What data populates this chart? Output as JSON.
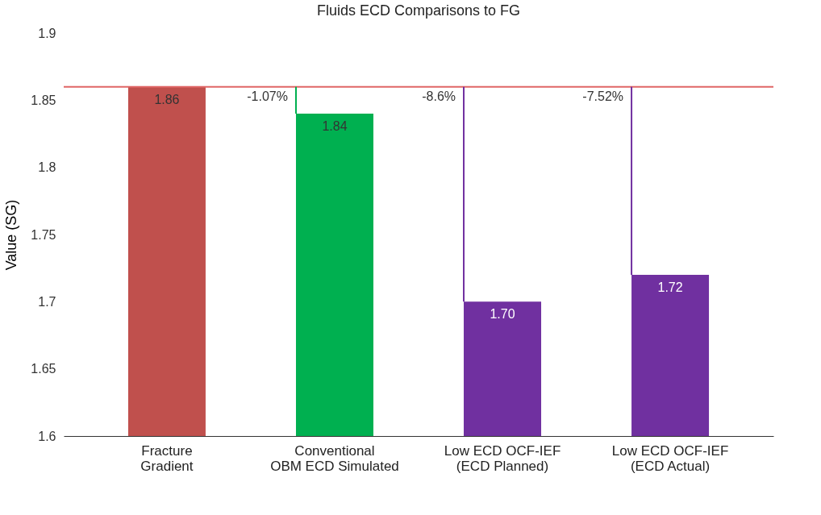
{
  "chart_data": {
    "type": "bar",
    "title": "Fluids ECD Comparisons to FG",
    "ylabel": "Value (SG)",
    "categories": [
      "Fracture\nGradient",
      "Conventional\nOBM ECD Simulated",
      "Low ECD OCF-IEF\n(ECD Planned)",
      "Low ECD OCF-IEF\n(ECD Actual)"
    ],
    "values": [
      1.86,
      1.84,
      1.7,
      1.72
    ],
    "value_labels": [
      "1.86",
      "1.84",
      "1.70",
      "1.72"
    ],
    "colors": [
      "#c0504d",
      "#00b050",
      "#7030a0",
      "#7030a0"
    ],
    "ylim": [
      1.6,
      1.9
    ],
    "yticks": [
      {
        "value": 1.6,
        "label": "1.6"
      },
      1.65,
      {
        "value": 1.7,
        "label": "1.7"
      },
      1.75,
      {
        "value": 1.8,
        "label": "1.8"
      },
      1.85,
      {
        "value": 1.9,
        "label": "1.9"
      }
    ],
    "grid": false,
    "ref_lines": [
      {
        "axis": "y",
        "value": 1.86,
        "color": "#e06666"
      }
    ],
    "annotations": [
      {
        "text": "-1.07%",
        "y": 1.86
      },
      {
        "text": "-8.6%",
        "y": 1.86
      },
      {
        "text": "-7.52%",
        "y": 1.86
      }
    ]
  }
}
